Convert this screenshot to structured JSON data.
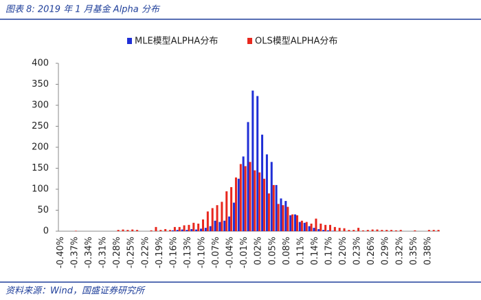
{
  "chart_data": {
    "type": "bar",
    "title": "图表 8: 2019 年 1 月基金 Alpha 分布",
    "source": "资料来源：Wind，国盛证券研究所",
    "legend": "top",
    "categories": [
      "-0.40%",
      null,
      null,
      "-0.37%",
      null,
      null,
      "-0.34%",
      null,
      null,
      "-0.31%",
      null,
      null,
      "-0.28%",
      null,
      null,
      "-0.25%",
      null,
      null,
      "-0.22%",
      null,
      null,
      "-0.19%",
      null,
      null,
      "-0.16%",
      null,
      null,
      "-0.13%",
      null,
      null,
      "-0.10%",
      null,
      null,
      "-0.07%",
      null,
      null,
      "-0.04%",
      null,
      null,
      "-0.01%",
      null,
      null,
      "0.02%",
      null,
      null,
      "0.05%",
      null,
      null,
      "0.08%",
      null,
      null,
      "0.11%",
      null,
      null,
      "0.14%",
      null,
      null,
      "0.17%",
      null,
      null,
      "0.20%",
      null,
      null,
      "0.23%",
      null,
      null,
      "0.26%",
      null,
      null,
      "0.29%",
      null,
      null,
      "0.32%",
      null,
      null,
      "0.35%",
      null,
      null,
      "0.38%",
      null,
      null
    ],
    "series": [
      {
        "name": "MLE模型ALPHA分布",
        "color": "#1f2fd6",
        "values": [
          0,
          0,
          0,
          0,
          0,
          0,
          0,
          0,
          0,
          0,
          0,
          0,
          0,
          0,
          0,
          0,
          0,
          0,
          0,
          0,
          0,
          0,
          0,
          0,
          2,
          3,
          4,
          3,
          5,
          4,
          6,
          8,
          12,
          25,
          22,
          25,
          35,
          68,
          125,
          178,
          260,
          335,
          322,
          230,
          183,
          165,
          110,
          78,
          72,
          38,
          40,
          22,
          20,
          12,
          8,
          5,
          3,
          2,
          1,
          0,
          0,
          0,
          0,
          0,
          0,
          0,
          0,
          0,
          0,
          0,
          0,
          0,
          0,
          0,
          0,
          0,
          0,
          0,
          0,
          0,
          0
        ]
      },
      {
        "name": "OLS模型ALPHA分布",
        "color": "#e8281e",
        "values": [
          0,
          0,
          0,
          1,
          0,
          0,
          0,
          0,
          0,
          0,
          0,
          0,
          3,
          4,
          3,
          4,
          3,
          0,
          0,
          2,
          10,
          3,
          5,
          3,
          10,
          10,
          14,
          15,
          20,
          18,
          28,
          47,
          55,
          62,
          70,
          95,
          105,
          128,
          160,
          155,
          165,
          145,
          140,
          125,
          90,
          110,
          65,
          62,
          58,
          40,
          38,
          25,
          22,
          18,
          30,
          18,
          15,
          15,
          10,
          8,
          7,
          3,
          3,
          8,
          2,
          3,
          4,
          4,
          3,
          3,
          3,
          2,
          3,
          0,
          0,
          2,
          0,
          0,
          3,
          3,
          3
        ]
      }
    ],
    "ylim": [
      0,
      400
    ],
    "yticks": [
      0,
      50,
      100,
      150,
      200,
      250,
      300,
      350,
      400
    ],
    "grid": false
  }
}
